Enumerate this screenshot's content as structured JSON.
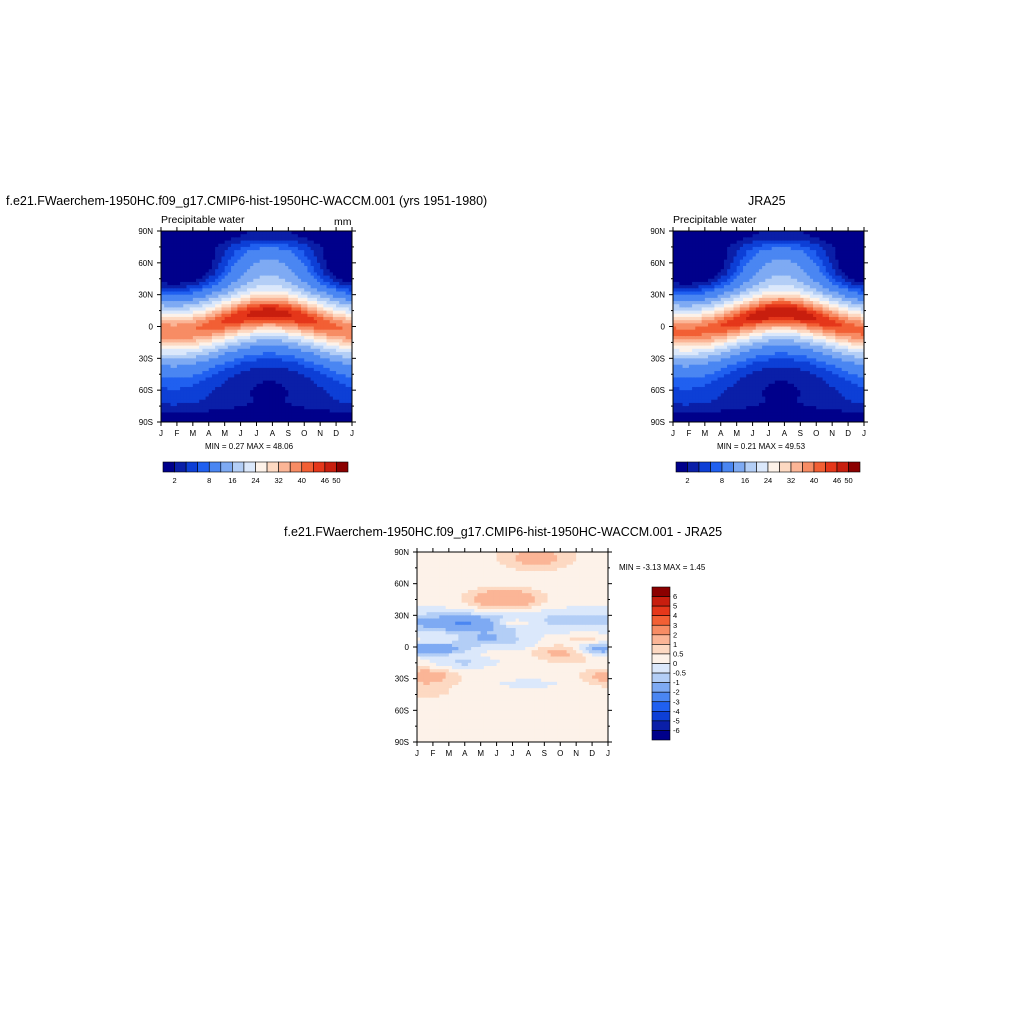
{
  "palette": {
    "blues": [
      "#00008b",
      "#0a1fa8",
      "#0d3fd6",
      "#2060f0",
      "#4a86f2",
      "#7eaaf3",
      "#b3cef6",
      "#dbe8fb"
    ],
    "neutral": "#fdf2e9",
    "reds": [
      "#fdd9c2",
      "#fbb596",
      "#f78c64",
      "#f25f34",
      "#e5371a",
      "#c81e0e",
      "#8b0000"
    ]
  },
  "top_left": {
    "title": "f.e21.FWaerchem-1950HC.f09_g17.CMIP6-hist-1950HC-WACCM.001 (yrs 1951-1980)",
    "left_label": "Precipitable water",
    "right_label": "mm",
    "stats": "MIN =   0.27 MAX =  48.06"
  },
  "top_right": {
    "title": "JRA25",
    "left_label": "Precipitable water",
    "stats": "MIN =   0.21 MAX =  49.53"
  },
  "bottom": {
    "title": "f.e21.FWaerchem-1950HC.f09_g17.CMIP6-hist-1950HC-WACCM.001 - JRA25",
    "stats": "MIN =  -3.13 MAX =   1.45"
  },
  "chart_data": [
    {
      "type": "heatmap",
      "panel": "model",
      "x_ticks": [
        "J",
        "F",
        "M",
        "A",
        "M",
        "J",
        "J",
        "A",
        "S",
        "O",
        "N",
        "D",
        "J"
      ],
      "y_ticks": [
        "90N",
        "60N",
        "30N",
        "0",
        "30S",
        "60S",
        "90S"
      ],
      "y_range": [
        -90,
        90
      ],
      "contour_levels": [
        2,
        4,
        6,
        8,
        12,
        16,
        20,
        24,
        28,
        32,
        36,
        40,
        43,
        46,
        50
      ],
      "colorbar_labels": [
        "2",
        "8",
        "16",
        "24",
        "32",
        "40",
        "46",
        "50"
      ],
      "min": 0.27,
      "max": 48.06,
      "units": "mm"
    },
    {
      "type": "heatmap",
      "panel": "JRA25",
      "x_ticks": [
        "J",
        "F",
        "M",
        "A",
        "M",
        "J",
        "J",
        "A",
        "S",
        "O",
        "N",
        "D",
        "J"
      ],
      "y_ticks": [
        "90N",
        "60N",
        "30N",
        "0",
        "30S",
        "60S",
        "90S"
      ],
      "y_range": [
        -90,
        90
      ],
      "contour_levels": [
        2,
        4,
        6,
        8,
        12,
        16,
        20,
        24,
        28,
        32,
        36,
        40,
        43,
        46,
        50
      ],
      "colorbar_labels": [
        "2",
        "8",
        "16",
        "24",
        "32",
        "40",
        "46",
        "50"
      ],
      "min": 0.21,
      "max": 49.53
    },
    {
      "type": "heatmap",
      "panel": "difference",
      "x_ticks": [
        "J",
        "F",
        "M",
        "A",
        "M",
        "J",
        "J",
        "A",
        "S",
        "O",
        "N",
        "D",
        "J"
      ],
      "y_ticks": [
        "90N",
        "60N",
        "30N",
        "0",
        "30S",
        "60S",
        "90S"
      ],
      "y_range": [
        -90,
        90
      ],
      "contour_levels": [
        -6,
        -5,
        -4,
        -3,
        -2,
        -1,
        -0.5,
        0,
        0.5,
        1,
        2,
        3,
        4,
        5,
        6
      ],
      "colorbar_labels": [
        "6",
        "5",
        "4",
        "3",
        "2",
        "1",
        "0.5",
        "0",
        "-0.5",
        "-1",
        "-2",
        "-3",
        "-4",
        "-5",
        "-6"
      ],
      "min": -3.13,
      "max": 1.45
    }
  ]
}
